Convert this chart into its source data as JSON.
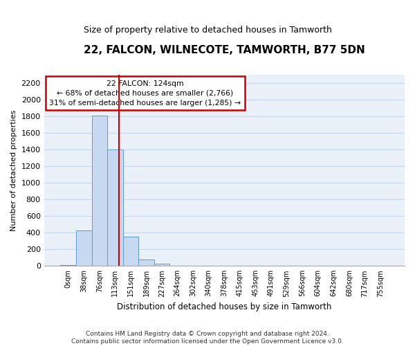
{
  "title": "22, FALCON, WILNECOTE, TAMWORTH, B77 5DN",
  "subtitle": "Size of property relative to detached houses in Tamworth",
  "xlabel": "Distribution of detached houses by size in Tamworth",
  "ylabel": "Number of detached properties",
  "bar_labels": [
    "0sqm",
    "38sqm",
    "76sqm",
    "113sqm",
    "151sqm",
    "189sqm",
    "227sqm",
    "264sqm",
    "302sqm",
    "340sqm",
    "378sqm",
    "415sqm",
    "453sqm",
    "491sqm",
    "529sqm",
    "566sqm",
    "604sqm",
    "642sqm",
    "680sqm",
    "717sqm",
    "755sqm"
  ],
  "bar_values": [
    15,
    425,
    1810,
    1400,
    355,
    75,
    25,
    0,
    0,
    0,
    0,
    0,
    0,
    0,
    0,
    0,
    0,
    0,
    0,
    0,
    0
  ],
  "bar_color": "#c6d9f0",
  "bar_edge_color": "#5b9bd5",
  "grid_color": "#c8d4e8",
  "annotation_text_line1": "22 FALCON: 124sqm",
  "annotation_text_line2": "← 68% of detached houses are smaller (2,766)",
  "annotation_text_line3": "31% of semi-detached houses are larger (1,285) →",
  "annotation_box_color": "#ffffff",
  "annotation_box_edge_color": "#cc0000",
  "vline_color": "#cc0000",
  "vline_x": 3.23,
  "ylim": [
    0,
    2300
  ],
  "yticks": [
    0,
    200,
    400,
    600,
    800,
    1000,
    1200,
    1400,
    1600,
    1800,
    2000,
    2200
  ],
  "footer_line1": "Contains HM Land Registry data © Crown copyright and database right 2024.",
  "footer_line2": "Contains public sector information licensed under the Open Government Licence v3.0."
}
